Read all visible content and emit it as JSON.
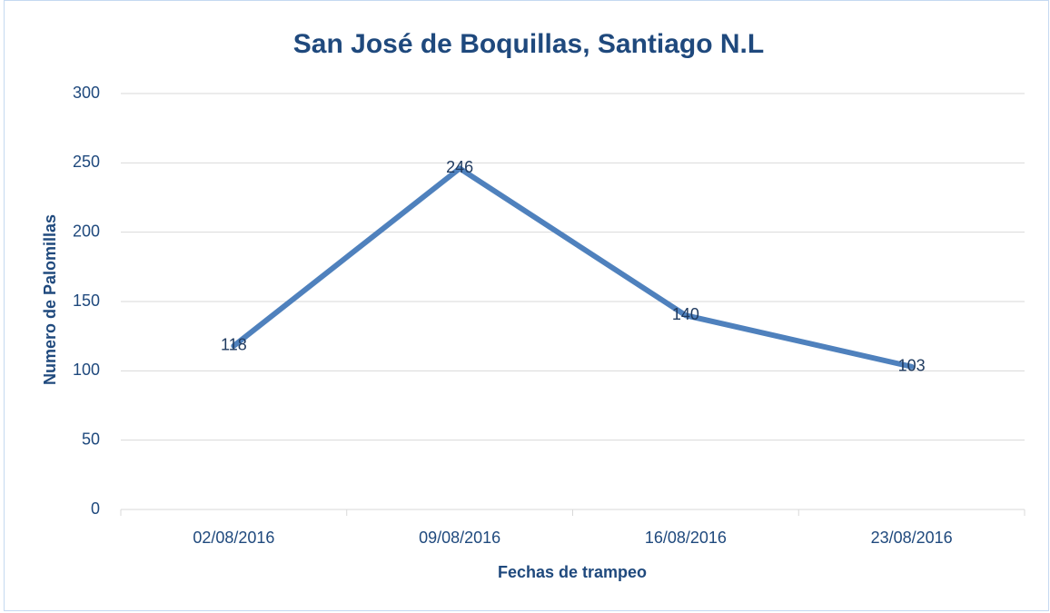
{
  "chart_data": {
    "type": "line",
    "title": "San José de Boquillas, Santiago N.L",
    "x_label": "Fechas de trampeo",
    "y_label": "Numero de Palomillas",
    "categories": [
      "02/08/2016",
      "09/08/2016",
      "16/08/2016",
      "23/08/2016"
    ],
    "values": [
      118,
      246,
      140,
      103
    ],
    "color": "#4f81bd",
    "ylim": [
      0,
      300
    ],
    "yticks": [
      0,
      50,
      100,
      150,
      200,
      250,
      300
    ],
    "grid": true,
    "data_labels": true
  }
}
